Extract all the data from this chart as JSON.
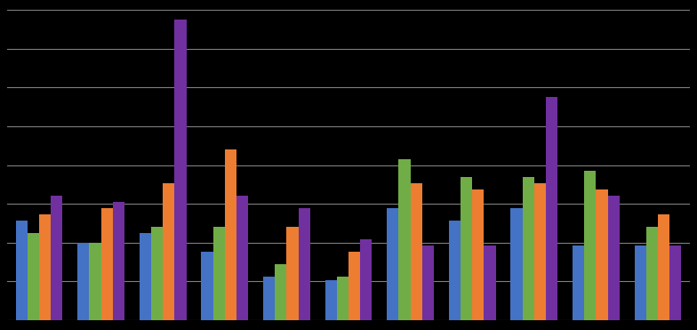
{
  "series": {
    "blue": [
      32,
      25,
      28,
      22,
      14,
      13,
      36,
      32,
      36,
      24,
      24
    ],
    "green": [
      28,
      25,
      30,
      30,
      18,
      14,
      52,
      46,
      46,
      48,
      30
    ],
    "orange": [
      34,
      36,
      44,
      55,
      30,
      22,
      44,
      42,
      44,
      42,
      34
    ],
    "purple": [
      40,
      38,
      97,
      40,
      36,
      26,
      24,
      24,
      72,
      40,
      24
    ]
  },
  "colors": {
    "blue": "#4472C4",
    "green": "#70AD47",
    "orange": "#ED7D31",
    "purple": "#7030A0"
  },
  "n_groups": 11,
  "background_color": "#000000",
  "plot_area_color": "#000000",
  "grid_color": "#7F7F7F",
  "ylim": [
    0,
    100
  ],
  "yticks_n": 9
}
